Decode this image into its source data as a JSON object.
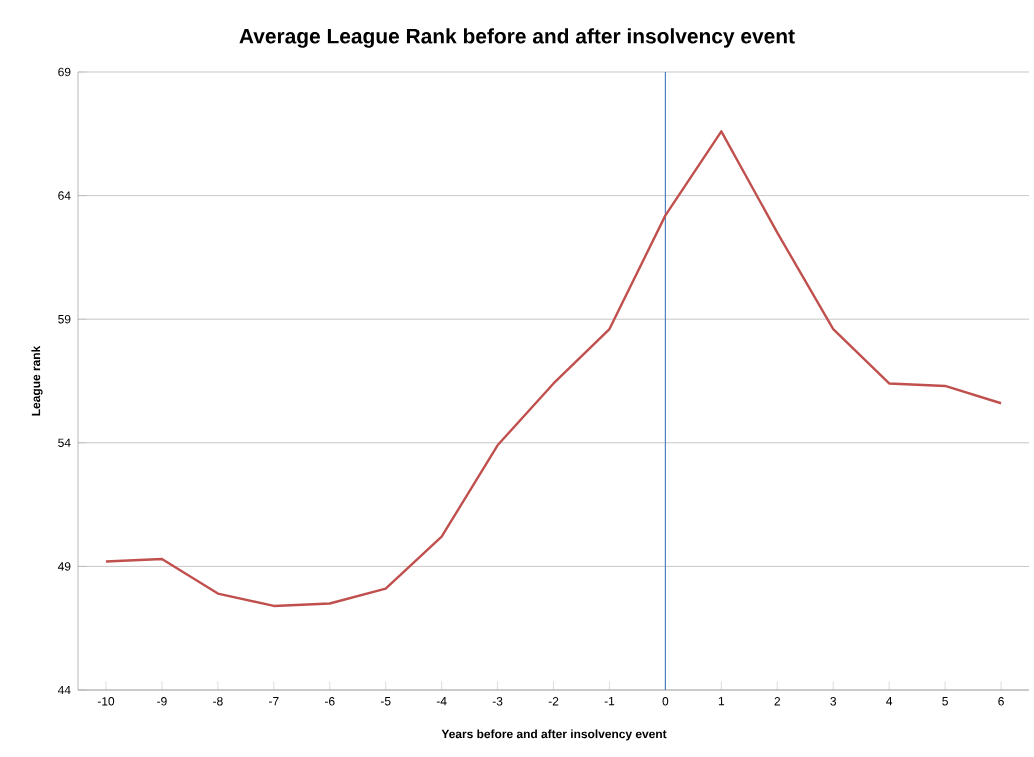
{
  "chart_data": {
    "type": "line",
    "title": "Average League Rank before and after insolvency event",
    "xlabel": "Years before and after insolvency event",
    "ylabel": "League rank",
    "x": [
      -10,
      -9,
      -8,
      -7,
      -6,
      -5,
      -4,
      -3,
      -2,
      -1,
      0,
      1,
      2,
      3,
      4,
      5,
      6
    ],
    "series": [
      {
        "color": "#c0504d",
        "values": [
          49.2,
          49.3,
          47.9,
          47.4,
          47.5,
          48.1,
          50.2,
          53.9,
          56.4,
          58.6,
          63.2,
          66.6,
          62.5,
          58.6,
          56.4,
          56.3,
          55.6
        ]
      }
    ],
    "xlim": [
      -10.5,
      6.5
    ],
    "xticks": [
      -10,
      -9,
      -8,
      -7,
      -6,
      -5,
      -4,
      -3,
      -2,
      -1,
      0,
      1,
      2,
      3,
      4,
      5,
      6
    ],
    "ylim": [
      44,
      69
    ],
    "yticks": [
      44,
      49,
      54,
      59,
      64,
      69
    ],
    "grid": "y",
    "ref_lines": [
      {
        "axis": "x",
        "value": 0,
        "color": "#4f81bd"
      }
    ]
  }
}
